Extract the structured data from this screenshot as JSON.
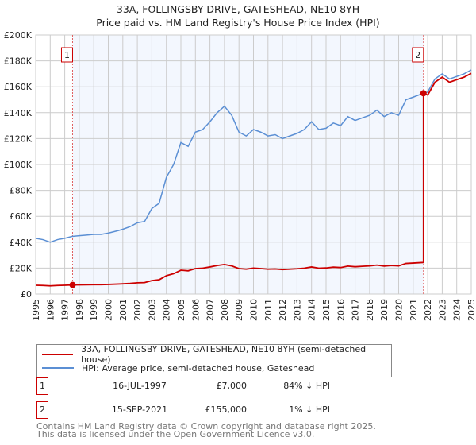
{
  "chart_data": {
    "type": "line",
    "title": "33A, FOLLINGSBY DRIVE, GATESHEAD, NE10 8YH",
    "subtitle": "Price paid vs. HM Land Registry's House Price Index (HPI)",
    "xlim": [
      1995,
      2025
    ],
    "ylim": [
      0,
      200000
    ],
    "y_ticks": [
      {
        "v": 0,
        "label": "£0"
      },
      {
        "v": 20000,
        "label": "£20K"
      },
      {
        "v": 40000,
        "label": "£40K"
      },
      {
        "v": 60000,
        "label": "£60K"
      },
      {
        "v": 80000,
        "label": "£80K"
      },
      {
        "v": 100000,
        "label": "£100K"
      },
      {
        "v": 120000,
        "label": "£120K"
      },
      {
        "v": 140000,
        "label": "£140K"
      },
      {
        "v": 160000,
        "label": "£160K"
      },
      {
        "v": 180000,
        "label": "£180K"
      },
      {
        "v": 200000,
        "label": "£200K"
      }
    ],
    "x_ticks": [
      "1995",
      "1996",
      "1997",
      "1998",
      "1999",
      "2000",
      "2001",
      "2002",
      "2003",
      "2004",
      "2005",
      "2006",
      "2007",
      "2008",
      "2009",
      "2010",
      "2011",
      "2012",
      "2013",
      "2014",
      "2015",
      "2016",
      "2017",
      "2018",
      "2019",
      "2020",
      "2021",
      "2022",
      "2023",
      "2024",
      "2025"
    ],
    "hpi_series": {
      "name": "HPI: Average price, semi-detached house, Gateshead",
      "color": "#5b8fd4",
      "x": [
        1995,
        1995.5,
        1996,
        1996.5,
        1997,
        1997.5,
        1998,
        1998.5,
        1999,
        1999.5,
        2000,
        2000.7,
        2001,
        2001.5,
        2002,
        2002.5,
        2003,
        2003.5,
        2004,
        2004.5,
        2005,
        2005.5,
        2006,
        2006.5,
        2007,
        2007.5,
        2008,
        2008.5,
        2009,
        2009.5,
        2010,
        2010.5,
        2011,
        2011.5,
        2012,
        2012.5,
        2013,
        2013.5,
        2014,
        2014.5,
        2015,
        2015.5,
        2016,
        2016.5,
        2017,
        2017.5,
        2018,
        2018.5,
        2019,
        2019.5,
        2020,
        2020.5,
        2021,
        2021.7,
        2022,
        2022.5,
        2023,
        2023.5,
        2024,
        2024.5,
        2025
      ],
      "y": [
        43000,
        42000,
        40000,
        42000,
        43000,
        44500,
        45000,
        45500,
        46000,
        46000,
        47000,
        49000,
        50000,
        52000,
        55000,
        56000,
        66000,
        70000,
        90000,
        100000,
        117000,
        114000,
        125000,
        127000,
        133000,
        140000,
        145000,
        138000,
        125000,
        122000,
        127000,
        125000,
        122000,
        123000,
        120000,
        122000,
        124000,
        127000,
        133000,
        127000,
        128000,
        132000,
        130000,
        137000,
        134000,
        136000,
        138000,
        142000,
        137000,
        140000,
        138000,
        150000,
        152000,
        155000,
        156000,
        166000,
        170000,
        166000,
        168000,
        170000,
        173000
      ]
    },
    "price_series": {
      "name": "33A, FOLLINGSBY DRIVE, GATESHEAD, NE10 8YH (semi-detached house)",
      "color": "#cc0000"
    },
    "sales": [
      {
        "id": "1",
        "x": 1997.54,
        "date": "16-JUL-1997",
        "price": 7000,
        "price_label": "£7,000",
        "hpi_diff": "84% ↓ HPI"
      },
      {
        "id": "2",
        "x": 2021.71,
        "date": "15-SEP-2021",
        "price": 155000,
        "price_label": "£155,000",
        "hpi_diff": "1% ↓ HPI"
      }
    ],
    "shaded_range": [
      1997.54,
      2021.71
    ],
    "grid": true,
    "legend_position": "bottom"
  },
  "footer": {
    "line1": "Contains HM Land Registry data © Crown copyright and database right 2025.",
    "line2": "This data is licensed under the Open Government Licence v3.0."
  }
}
